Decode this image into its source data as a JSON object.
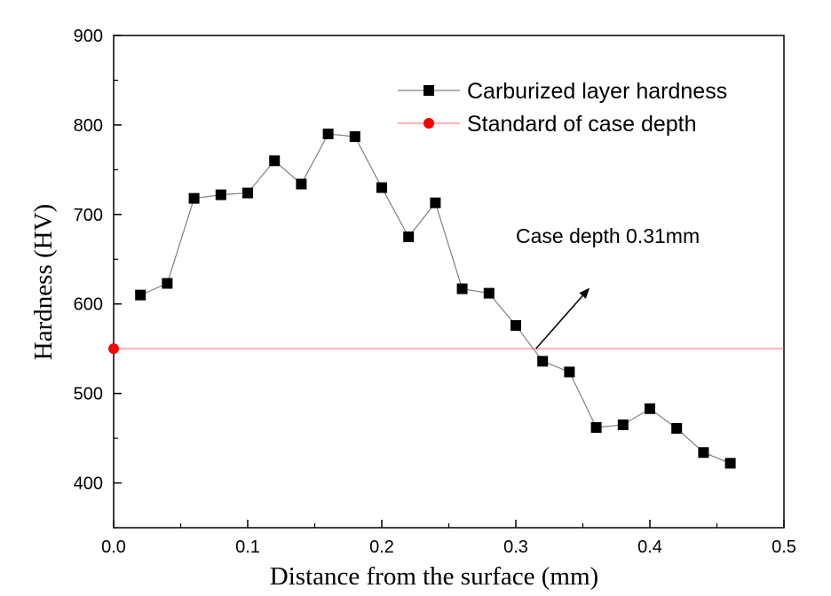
{
  "chart_data": {
    "type": "line",
    "xlabel": "Distance from the surface (mm)",
    "ylabel": "Hardness (HV)",
    "xlim": [
      0.0,
      0.5
    ],
    "ylim": [
      350,
      900
    ],
    "x_ticks": [
      0.0,
      0.1,
      0.2,
      0.3,
      0.4,
      0.5
    ],
    "x_tick_labels": [
      "0.0",
      "0.1",
      "0.2",
      "0.3",
      "0.4",
      "0.5"
    ],
    "y_ticks": [
      400,
      500,
      600,
      700,
      800,
      900
    ],
    "y_tick_labels": [
      "400",
      "500",
      "600",
      "700",
      "800",
      "900"
    ],
    "grid": false,
    "legend_position": "top-right",
    "series": [
      {
        "name": "Carburized layer hardness",
        "color": "#000000",
        "line_color": "#808080",
        "marker": "square",
        "x": [
          0.02,
          0.04,
          0.06,
          0.08,
          0.1,
          0.12,
          0.14,
          0.16,
          0.18,
          0.2,
          0.22,
          0.24,
          0.26,
          0.28,
          0.3,
          0.32,
          0.34,
          0.36,
          0.38,
          0.4,
          0.42,
          0.44,
          0.46
        ],
        "y": [
          610,
          623,
          718,
          722,
          724,
          760,
          734,
          790,
          787,
          730,
          675,
          713,
          617,
          612,
          576,
          536,
          524,
          462,
          465,
          483,
          461,
          434,
          422
        ]
      },
      {
        "name": "Standard of case depth",
        "color": "#ff0000",
        "line_color": "#ff6666",
        "marker": "circle",
        "x": [
          0.0,
          0.5
        ],
        "y": [
          550,
          550
        ]
      }
    ],
    "annotations": [
      {
        "text": "Case depth 0.31mm",
        "arrow_from": [
          0.315,
          550
        ],
        "arrow_to": [
          0.355,
          618
        ],
        "text_at": [
          0.3,
          668
        ]
      }
    ]
  }
}
